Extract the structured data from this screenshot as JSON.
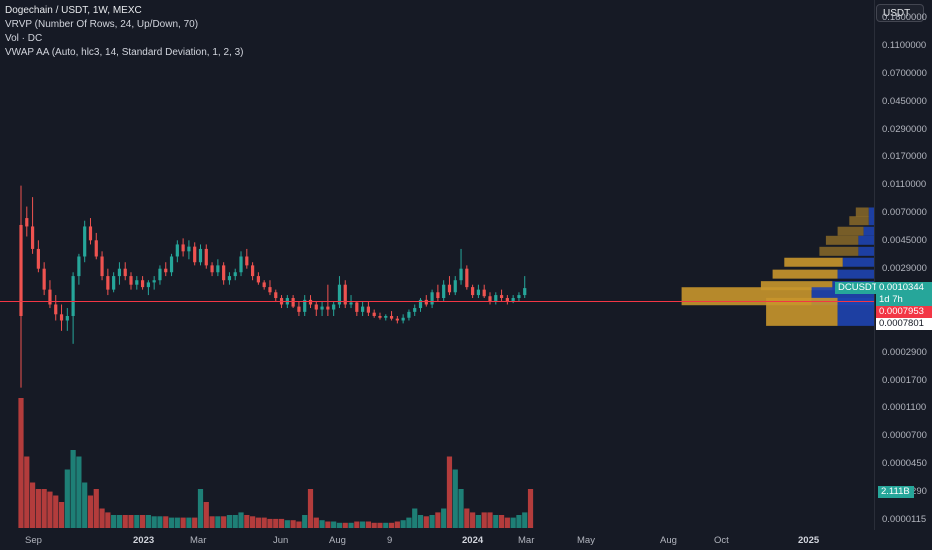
{
  "legend": {
    "symbol": "Dogechain / USDT, 1W, MEXC",
    "vrvp": "VRVP (Number Of Rows, 24, Up/Down, 70)",
    "vol": "Vol · DC",
    "vwap": "VWAP AA (Auto, hlc3, 14, Standard Deviation, 1, 2, 3)"
  },
  "currency_button": "USDT",
  "price_axis": {
    "labels": [
      "0.1800000",
      "0.1100000",
      "0.0700000",
      "0.0450000",
      "0.0290000",
      "0.0170000",
      "0.0110000",
      "0.0070000",
      "0.0045000",
      "0.0029000",
      "0.0017000",
      "0.0004500",
      "0.0002900",
      "0.0001700",
      "0.0001100",
      "0.0000700",
      "0.0000450",
      "0.0000290",
      "0.0000115"
    ]
  },
  "time_axis": {
    "labels": [
      {
        "text": "Sep",
        "bold": false
      },
      {
        "text": "2023",
        "bold": true
      },
      {
        "text": "Mar",
        "bold": false
      },
      {
        "text": "Jun",
        "bold": false
      },
      {
        "text": "Aug",
        "bold": false
      },
      {
        "text": "9",
        "bold": false
      },
      {
        "text": "2024",
        "bold": true
      },
      {
        "text": "Mar",
        "bold": false
      },
      {
        "text": "May",
        "bold": false
      },
      {
        "text": "Aug",
        "bold": false
      },
      {
        "text": "Oct",
        "bold": false
      },
      {
        "text": "2025",
        "bold": true
      }
    ]
  },
  "badges": {
    "symbol_tag": "DCUSDT",
    "last_price": "0.0010344",
    "countdown": "1d 7h",
    "red_price": "0.0007953",
    "white_price": "0.0007801",
    "volume": "2.111B"
  },
  "colors": {
    "background": "#161a25",
    "up": "#26a69a",
    "down": "#ef5350",
    "vol_up": "#1e7f76",
    "vol_down": "#b33c3c",
    "vrvp_up": "#c8962c",
    "vrvp_down": "#1e44b0",
    "price_line": "#f23645",
    "last_price_badge": "#26a69a"
  },
  "chart_data": {
    "type": "candlestick",
    "interval": "1W",
    "pair": "DC/USDT",
    "y_scale": "log",
    "last_price": 0.0010344,
    "candles": [
      {
        "o": 0.0035,
        "h": 0.0075,
        "l": 0.00015,
        "c": 0.0006
      },
      {
        "o": 0.004,
        "h": 0.005,
        "l": 0.0028,
        "c": 0.0034
      },
      {
        "o": 0.0034,
        "h": 0.006,
        "l": 0.002,
        "c": 0.0022
      },
      {
        "o": 0.0022,
        "h": 0.0026,
        "l": 0.0014,
        "c": 0.0015
      },
      {
        "o": 0.0015,
        "h": 0.0017,
        "l": 0.0009,
        "c": 0.001
      },
      {
        "o": 0.001,
        "h": 0.0012,
        "l": 0.0007,
        "c": 0.00075
      },
      {
        "o": 0.00075,
        "h": 0.0009,
        "l": 0.00055,
        "c": 0.00062
      },
      {
        "o": 0.00062,
        "h": 0.00075,
        "l": 0.00045,
        "c": 0.00055
      },
      {
        "o": 0.00055,
        "h": 0.0007,
        "l": 0.00045,
        "c": 0.0006
      },
      {
        "o": 0.0006,
        "h": 0.0014,
        "l": 0.00035,
        "c": 0.0013
      },
      {
        "o": 0.0013,
        "h": 0.002,
        "l": 0.0011,
        "c": 0.0019
      },
      {
        "o": 0.0019,
        "h": 0.0038,
        "l": 0.0017,
        "c": 0.0034
      },
      {
        "o": 0.0034,
        "h": 0.004,
        "l": 0.0024,
        "c": 0.0026
      },
      {
        "o": 0.0026,
        "h": 0.003,
        "l": 0.0018,
        "c": 0.0019
      },
      {
        "o": 0.0019,
        "h": 0.0021,
        "l": 0.0012,
        "c": 0.0013
      },
      {
        "o": 0.0013,
        "h": 0.0015,
        "l": 0.0009,
        "c": 0.001
      },
      {
        "o": 0.001,
        "h": 0.0014,
        "l": 0.00095,
        "c": 0.0013
      },
      {
        "o": 0.0013,
        "h": 0.0017,
        "l": 0.0011,
        "c": 0.0015
      },
      {
        "o": 0.0015,
        "h": 0.0017,
        "l": 0.0012,
        "c": 0.0013
      },
      {
        "o": 0.0013,
        "h": 0.0014,
        "l": 0.001,
        "c": 0.0011
      },
      {
        "o": 0.0011,
        "h": 0.0013,
        "l": 0.001,
        "c": 0.0012
      },
      {
        "o": 0.0012,
        "h": 0.0013,
        "l": 0.001,
        "c": 0.00105
      },
      {
        "o": 0.00105,
        "h": 0.0012,
        "l": 0.0009,
        "c": 0.00115
      },
      {
        "o": 0.00115,
        "h": 0.0013,
        "l": 0.001,
        "c": 0.0012
      },
      {
        "o": 0.0012,
        "h": 0.0016,
        "l": 0.0011,
        "c": 0.0015
      },
      {
        "o": 0.0015,
        "h": 0.0017,
        "l": 0.0013,
        "c": 0.0014
      },
      {
        "o": 0.0014,
        "h": 0.002,
        "l": 0.0013,
        "c": 0.0019
      },
      {
        "o": 0.0019,
        "h": 0.0026,
        "l": 0.0017,
        "c": 0.0024
      },
      {
        "o": 0.0024,
        "h": 0.0027,
        "l": 0.0019,
        "c": 0.0021
      },
      {
        "o": 0.0021,
        "h": 0.0026,
        "l": 0.0018,
        "c": 0.0023
      },
      {
        "o": 0.0023,
        "h": 0.0025,
        "l": 0.0016,
        "c": 0.0017
      },
      {
        "o": 0.0017,
        "h": 0.0024,
        "l": 0.0016,
        "c": 0.0022
      },
      {
        "o": 0.0022,
        "h": 0.0024,
        "l": 0.0015,
        "c": 0.0016
      },
      {
        "o": 0.0016,
        "h": 0.0017,
        "l": 0.0013,
        "c": 0.0014
      },
      {
        "o": 0.0014,
        "h": 0.0018,
        "l": 0.0013,
        "c": 0.0016
      },
      {
        "o": 0.0016,
        "h": 0.0017,
        "l": 0.0011,
        "c": 0.0012
      },
      {
        "o": 0.0012,
        "h": 0.0014,
        "l": 0.0011,
        "c": 0.0013
      },
      {
        "o": 0.0013,
        "h": 0.0015,
        "l": 0.0012,
        "c": 0.0014
      },
      {
        "o": 0.0014,
        "h": 0.0021,
        "l": 0.0013,
        "c": 0.0019
      },
      {
        "o": 0.0019,
        "h": 0.0022,
        "l": 0.0015,
        "c": 0.0016
      },
      {
        "o": 0.0016,
        "h": 0.0017,
        "l": 0.0012,
        "c": 0.0013
      },
      {
        "o": 0.0013,
        "h": 0.0014,
        "l": 0.0011,
        "c": 0.00115
      },
      {
        "o": 0.00115,
        "h": 0.0012,
        "l": 0.001,
        "c": 0.00105
      },
      {
        "o": 0.00105,
        "h": 0.0012,
        "l": 0.0009,
        "c": 0.00095
      },
      {
        "o": 0.00095,
        "h": 0.001,
        "l": 0.0008,
        "c": 0.00085
      },
      {
        "o": 0.00085,
        "h": 0.0009,
        "l": 0.0007,
        "c": 0.00075
      },
      {
        "o": 0.00075,
        "h": 0.0009,
        "l": 0.0007,
        "c": 0.00085
      },
      {
        "o": 0.00085,
        "h": 0.0009,
        "l": 0.0007,
        "c": 0.00072
      },
      {
        "o": 0.00072,
        "h": 0.0008,
        "l": 0.0006,
        "c": 0.00065
      },
      {
        "o": 0.00065,
        "h": 0.0009,
        "l": 0.0006,
        "c": 0.00082
      },
      {
        "o": 0.00082,
        "h": 0.0009,
        "l": 0.0007,
        "c": 0.00075
      },
      {
        "o": 0.00075,
        "h": 0.0008,
        "l": 0.0006,
        "c": 0.00068
      },
      {
        "o": 0.00068,
        "h": 0.0008,
        "l": 0.0006,
        "c": 0.00072
      },
      {
        "o": 0.00072,
        "h": 0.0011,
        "l": 0.0006,
        "c": 0.00068
      },
      {
        "o": 0.00068,
        "h": 0.0008,
        "l": 0.0006,
        "c": 0.00075
      },
      {
        "o": 0.00075,
        "h": 0.0013,
        "l": 0.0007,
        "c": 0.0011
      },
      {
        "o": 0.0011,
        "h": 0.0012,
        "l": 0.0007,
        "c": 0.00075
      },
      {
        "o": 0.00075,
        "h": 0.0009,
        "l": 0.0007,
        "c": 0.00078
      },
      {
        "o": 0.00078,
        "h": 0.0008,
        "l": 0.0006,
        "c": 0.00065
      },
      {
        "o": 0.00065,
        "h": 0.0008,
        "l": 0.0006,
        "c": 0.00072
      },
      {
        "o": 0.00072,
        "h": 0.0008,
        "l": 0.0006,
        "c": 0.00064
      },
      {
        "o": 0.00064,
        "h": 0.00068,
        "l": 0.00058,
        "c": 0.0006
      },
      {
        "o": 0.0006,
        "h": 0.00064,
        "l": 0.00056,
        "c": 0.00058
      },
      {
        "o": 0.00058,
        "h": 0.00062,
        "l": 0.00055,
        "c": 0.0006
      },
      {
        "o": 0.0006,
        "h": 0.00066,
        "l": 0.00055,
        "c": 0.00057
      },
      {
        "o": 0.00057,
        "h": 0.0006,
        "l": 0.00052,
        "c": 0.00055
      },
      {
        "o": 0.00055,
        "h": 0.00062,
        "l": 0.00052,
        "c": 0.00058
      },
      {
        "o": 0.00058,
        "h": 0.00068,
        "l": 0.00055,
        "c": 0.00065
      },
      {
        "o": 0.00065,
        "h": 0.00075,
        "l": 0.0006,
        "c": 0.0007
      },
      {
        "o": 0.0007,
        "h": 0.00085,
        "l": 0.00065,
        "c": 0.00082
      },
      {
        "o": 0.00082,
        "h": 0.0009,
        "l": 0.00072,
        "c": 0.00075
      },
      {
        "o": 0.00075,
        "h": 0.001,
        "l": 0.0007,
        "c": 0.00095
      },
      {
        "o": 0.00095,
        "h": 0.0011,
        "l": 0.0008,
        "c": 0.00085
      },
      {
        "o": 0.00085,
        "h": 0.0012,
        "l": 0.0008,
        "c": 0.0011
      },
      {
        "o": 0.0011,
        "h": 0.0013,
        "l": 0.0009,
        "c": 0.00095
      },
      {
        "o": 0.00095,
        "h": 0.0013,
        "l": 0.0009,
        "c": 0.0012
      },
      {
        "o": 0.0012,
        "h": 0.0022,
        "l": 0.0011,
        "c": 0.0015
      },
      {
        "o": 0.0015,
        "h": 0.0016,
        "l": 0.001,
        "c": 0.00105
      },
      {
        "o": 0.00105,
        "h": 0.0011,
        "l": 0.00085,
        "c": 0.0009
      },
      {
        "o": 0.0009,
        "h": 0.0011,
        "l": 0.00085,
        "c": 0.001
      },
      {
        "o": 0.001,
        "h": 0.0011,
        "l": 0.00085,
        "c": 0.00088
      },
      {
        "o": 0.00088,
        "h": 0.00095,
        "l": 0.00075,
        "c": 0.0008
      },
      {
        "o": 0.0008,
        "h": 0.00095,
        "l": 0.00075,
        "c": 0.0009
      },
      {
        "o": 0.0009,
        "h": 0.001,
        "l": 0.0008,
        "c": 0.00085
      },
      {
        "o": 0.00085,
        "h": 0.0009,
        "l": 0.00075,
        "c": 0.0008
      },
      {
        "o": 0.0008,
        "h": 0.0009,
        "l": 0.00077,
        "c": 0.00085
      },
      {
        "o": 0.00085,
        "h": 0.00095,
        "l": 0.0008,
        "c": 0.0009
      },
      {
        "o": 0.0009,
        "h": 0.0013,
        "l": 0.00085,
        "c": 0.00103
      }
    ],
    "volume": [
      1.0,
      0.55,
      0.35,
      0.3,
      0.3,
      0.28,
      0.25,
      0.2,
      0.45,
      0.6,
      0.55,
      0.35,
      0.25,
      0.3,
      0.15,
      0.12,
      0.1,
      0.1,
      0.1,
      0.1,
      0.1,
      0.1,
      0.1,
      0.09,
      0.09,
      0.09,
      0.08,
      0.08,
      0.08,
      0.08,
      0.08,
      0.3,
      0.2,
      0.09,
      0.09,
      0.09,
      0.1,
      0.1,
      0.12,
      0.1,
      0.09,
      0.08,
      0.08,
      0.07,
      0.07,
      0.07,
      0.06,
      0.06,
      0.05,
      0.1,
      0.3,
      0.08,
      0.06,
      0.05,
      0.05,
      0.04,
      0.04,
      0.04,
      0.05,
      0.05,
      0.05,
      0.04,
      0.04,
      0.04,
      0.04,
      0.05,
      0.06,
      0.08,
      0.15,
      0.1,
      0.09,
      0.1,
      0.12,
      0.15,
      0.55,
      0.45,
      0.3,
      0.15,
      0.12,
      0.1,
      0.12,
      0.12,
      0.1,
      0.1,
      0.08,
      0.08,
      0.1,
      0.12,
      0.3
    ],
    "volume_last": "2.111B",
    "volume_profile": [
      {
        "price": 0.0045,
        "up": 0.1,
        "down": 0.05
      },
      {
        "price": 0.0038,
        "up": 0.15,
        "down": 0.05
      },
      {
        "price": 0.0031,
        "up": 0.2,
        "down": 0.1
      },
      {
        "price": 0.0026,
        "up": 0.25,
        "down": 0.15
      },
      {
        "price": 0.0021,
        "up": 0.3,
        "down": 0.15
      },
      {
        "price": 0.0017,
        "up": 0.45,
        "down": 0.3
      },
      {
        "price": 0.00135,
        "up": 0.5,
        "down": 0.35
      },
      {
        "price": 0.00108,
        "up": 0.55,
        "down": 0.4
      },
      {
        "price": 0.00088,
        "up": 1.0,
        "down": 0.6
      },
      {
        "price": 0.00065,
        "up": 0.55,
        "down": 0.35
      }
    ],
    "horizontal_line": 0.0007953
  }
}
